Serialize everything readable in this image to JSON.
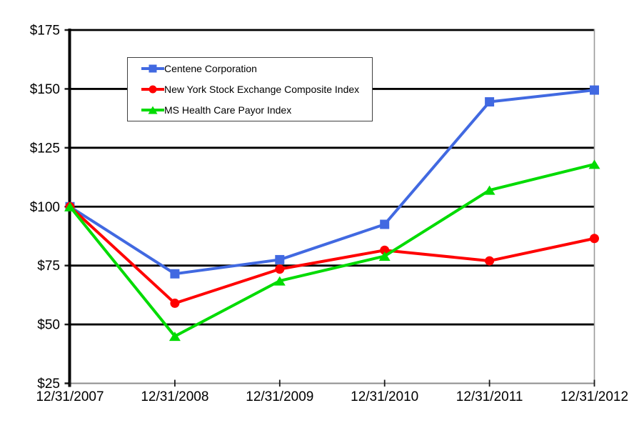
{
  "chart_data": {
    "type": "line",
    "title": "",
    "x_labels": [
      "12/31/2007",
      "12/31/2008",
      "12/31/2009",
      "12/31/2010",
      "12/31/2011",
      "12/31/2012"
    ],
    "y_axis": {
      "min": 25,
      "max": 175,
      "step": 25,
      "prefix": "$",
      "tick_labels": [
        "$25",
        "$50",
        "$75",
        "$100",
        "$125",
        "$150",
        "$175"
      ]
    },
    "series": [
      {
        "name": "Centene Corporation",
        "color": "#4169E1",
        "marker": "square",
        "values": [
          100,
          71.5,
          77.5,
          92.5,
          144.5,
          149.5
        ]
      },
      {
        "name": "New York Stock Exchange Composite Index",
        "color": "#FF0000",
        "marker": "circle",
        "values": [
          100,
          59,
          73.5,
          81.5,
          77,
          86.5
        ]
      },
      {
        "name": "MS Health Care Payor Index",
        "color": "#00DB00",
        "marker": "triangle",
        "values": [
          100,
          45,
          68.5,
          79,
          107,
          118
        ]
      }
    ],
    "legend_position": "inside-top-left",
    "grid": "horizontal-black",
    "axis_colors": {
      "gridline": "#000000",
      "y_axis_line": "#000000",
      "x_axis_line": "#8c8c8c",
      "right_border": "#9a9a9a",
      "tick": "#1a1a1a",
      "label": "#000000"
    }
  }
}
